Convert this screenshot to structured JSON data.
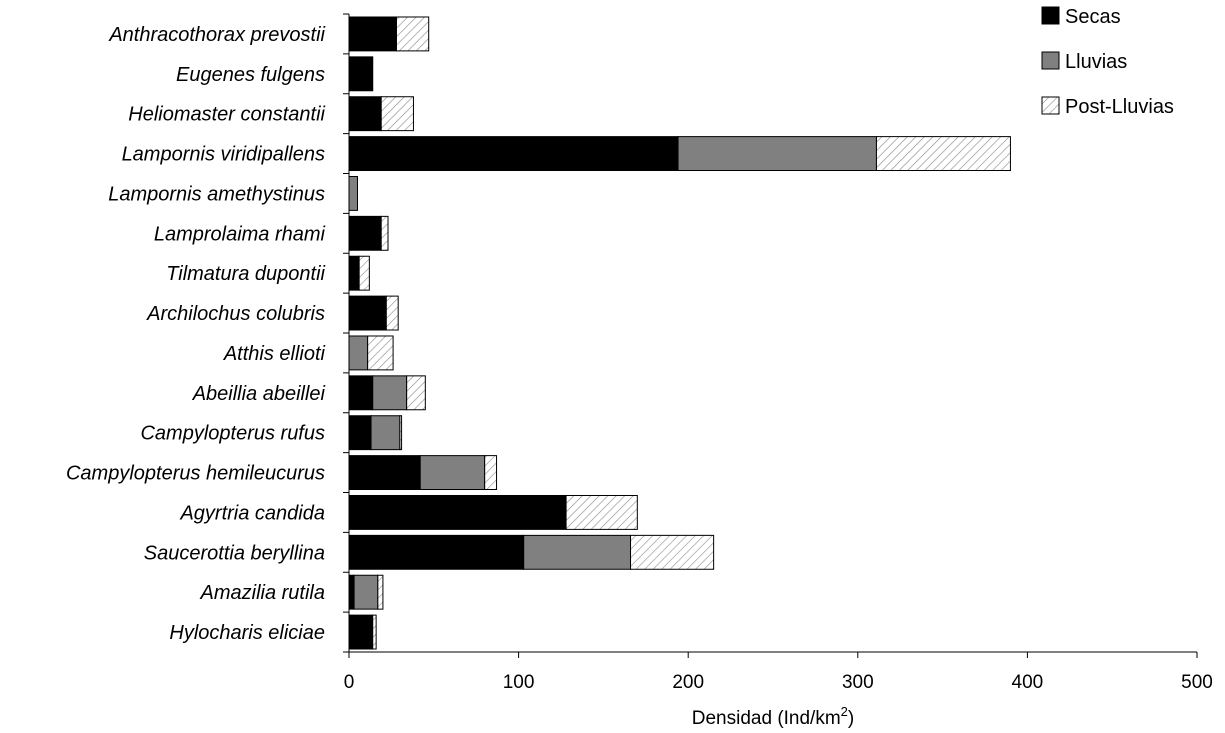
{
  "chart_data": {
    "type": "bar",
    "orientation": "horizontal",
    "stacked": true,
    "title": "",
    "xlabel": "Densidad (Ind/km",
    "xlabel_superscript": "2",
    "xlabel_suffix": ")",
    "ylabel": "",
    "xlim": [
      0,
      500
    ],
    "x_ticks": [
      "0",
      "100",
      "200",
      "300",
      "400",
      "500"
    ],
    "grid": false,
    "legend_position": "top-right",
    "categories": [
      "Anthracothorax prevostii",
      "Eugenes fulgens",
      "Heliomaster constantii",
      "Lampornis viridipallens",
      "Lampornis amethystinus",
      "Lamprolaima rhami",
      "Tilmatura dupontii",
      "Archilochus colubris",
      "Atthis ellioti",
      "Abeillia abeillei",
      "Campylopterus rufus",
      "Campylopterus hemileucurus",
      "Agyrtria candida",
      "Saucerottia beryllina",
      "Amazilia rutila",
      "Hylocharis eliciae"
    ],
    "series": [
      {
        "name": "Secas",
        "color": "#000000",
        "pattern": "solid",
        "values": [
          28,
          14,
          19,
          194,
          0,
          19,
          6,
          22,
          0,
          14,
          13,
          42,
          128,
          103,
          3,
          14
        ]
      },
      {
        "name": "Lluvias",
        "color": "#808080",
        "pattern": "solid",
        "values": [
          0,
          0,
          0,
          117,
          5,
          0,
          0,
          0,
          11,
          20,
          17,
          38,
          0,
          63,
          14,
          0
        ]
      },
      {
        "name": "Post-Lluvias",
        "color": "#ffffff",
        "pattern": "diagonal-hatch",
        "values": [
          19,
          0,
          19,
          79,
          0,
          4,
          6,
          7,
          15,
          11,
          1,
          7,
          42,
          49,
          3,
          2
        ]
      }
    ]
  }
}
